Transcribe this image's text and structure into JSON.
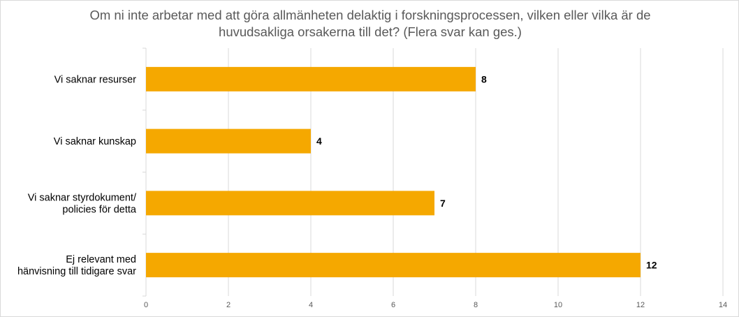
{
  "chart_data": {
    "type": "bar",
    "orientation": "horizontal",
    "title_lines": [
      "Om ni inte arbetar med att göra allmänheten delaktig i forskningsprocessen, vilken eller vilka är de",
      "huvudsakliga orsakerna till det?  (Flera svar kan ges.)"
    ],
    "categories": [
      [
        "Vi saknar resurser"
      ],
      [
        "Vi saknar kunskap"
      ],
      [
        "Vi saknar styrdokument/",
        "policies för detta"
      ],
      [
        "Ej relevant med",
        "hänvisning till tidigare svar"
      ]
    ],
    "values": [
      8,
      4,
      7,
      12
    ],
    "data_labels": [
      "8",
      "4",
      "7",
      "12"
    ],
    "xlim": [
      0,
      14
    ],
    "ticks": [
      "0",
      "2",
      "4",
      "6",
      "8",
      "10",
      "12",
      "14"
    ],
    "grid": "vertical",
    "legend": "none",
    "bar_color": "#F5A800",
    "grid_color": "#d9d9d9"
  }
}
